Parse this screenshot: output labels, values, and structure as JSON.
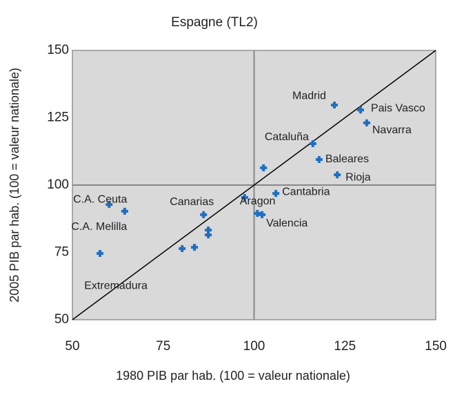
{
  "chart_data": {
    "type": "scatter",
    "title": "Espagne (TL2)",
    "xlabel": "1980 PIB par hab. (100 = valeur nationale)",
    "ylabel": "2005 PIB par hab. (100 = valeur nationale)",
    "x": [
      122.1,
      129.3,
      131.0,
      116.2,
      117.9,
      122.9,
      102.6,
      106.0,
      97.4,
      100.9,
      102.2,
      86.1,
      60.1,
      64.4,
      87.4,
      87.4,
      83.6,
      80.2,
      57.6
    ],
    "values": [
      129.7,
      127.9,
      123.1,
      115.4,
      109.5,
      103.8,
      106.4,
      96.9,
      95.4,
      89.5,
      89.0,
      89.0,
      92.8,
      90.3,
      83.3,
      81.5,
      76.9,
      76.4,
      74.6
    ],
    "labels": [
      "Madrid",
      "Pais Vasco",
      "Navarra",
      "Cataluña",
      "Baleares",
      "Rioja",
      null,
      "Cantabria",
      "Aragon",
      null,
      "Valencia",
      "Canarias",
      "C.A. Ceuta",
      "C.A. Melilla",
      null,
      null,
      null,
      null,
      "Extremadura"
    ],
    "color": "#1f6fc0",
    "xlim": [
      50,
      150
    ],
    "xticks": [
      50,
      75,
      100,
      125,
      150
    ],
    "ylim": [
      50,
      150
    ],
    "yticks": [
      50,
      75,
      100,
      125,
      150
    ],
    "reference_lines": {
      "x": 100,
      "y": 100,
      "diagonal": true
    }
  }
}
